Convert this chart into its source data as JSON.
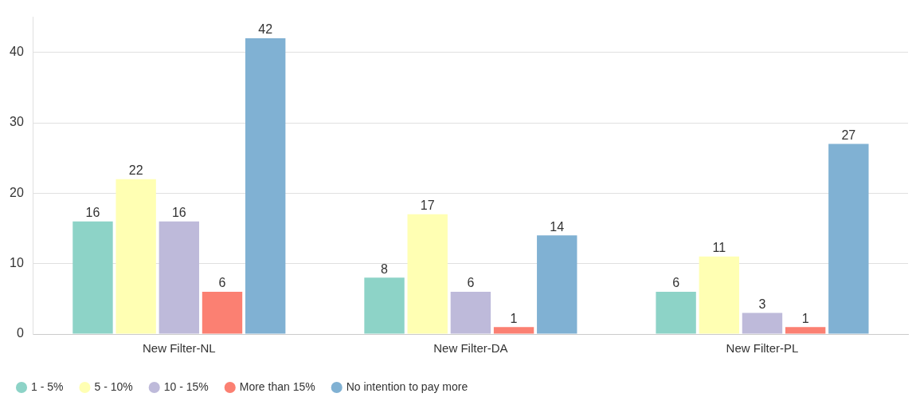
{
  "chart_data": {
    "type": "bar",
    "categories": [
      "New Filter-NL",
      "New Filter-DA",
      "New Filter-PL"
    ],
    "series": [
      {
        "name": "1 - 5%",
        "color": "#8dd3c7",
        "values": [
          16,
          8,
          6
        ]
      },
      {
        "name": "5 - 10%",
        "color": "#ffffb3",
        "values": [
          22,
          17,
          11
        ]
      },
      {
        "name": "10 - 15%",
        "color": "#bebada",
        "values": [
          16,
          6,
          3
        ]
      },
      {
        "name": "More than 15%",
        "color": "#fb8072",
        "values": [
          6,
          1,
          1
        ]
      },
      {
        "name": "No intention to pay more",
        "color": "#80b1d3",
        "values": [
          42,
          14,
          27
        ]
      }
    ],
    "ylim": [
      0,
      45
    ],
    "yticks": [
      0,
      10,
      20,
      30,
      40
    ],
    "grid": "y",
    "legend": "bottom left",
    "marker": "circle",
    "data_labels": true
  }
}
